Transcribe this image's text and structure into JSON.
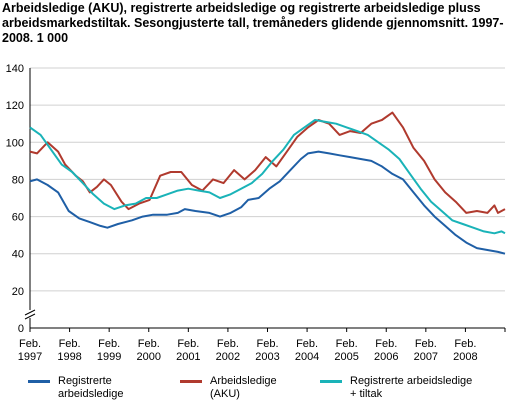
{
  "title": "Arbeidsledige (AKU), registrerte arbeidsledige og registrerte arbeidsledige pluss arbeidsmarkedstiltak. Sesongjusterte tall, tremåneders glidende gjennomsnitt. 1997-2008. 1 000",
  "chart_data": {
    "type": "line",
    "title": "Arbeidsledige (AKU), registrerte arbeidsledige og registrerte arbeidsledige pluss arbeidsmarkedstiltak. Sesongjusterte tall, tremåneders glidende gjennomsnitt. 1997-2008. 1 000",
    "xlabel": "",
    "ylabel": "",
    "ylim": [
      0,
      140
    ],
    "yticks": [
      0,
      20,
      40,
      60,
      80,
      100,
      120,
      140
    ],
    "y_axis_break": true,
    "grid": true,
    "x_range": [
      "1997-01",
      "2008-04"
    ],
    "x_tick_labels": [
      [
        "Feb.",
        "1997"
      ],
      [
        "Feb.",
        "1998"
      ],
      [
        "Feb.",
        "1999"
      ],
      [
        "Feb.",
        "2000"
      ],
      [
        "Feb.",
        "2001"
      ],
      [
        "Feb.",
        "2002"
      ],
      [
        "Feb.",
        "2003"
      ],
      [
        "Feb.",
        "2004"
      ],
      [
        "Feb.",
        "2005"
      ],
      [
        "Feb.",
        "2006"
      ],
      [
        "Feb.",
        "2007"
      ],
      [
        "Feb.",
        "2008"
      ]
    ],
    "legend_position": "bottom",
    "series": [
      {
        "name": "Registrerte arbeidsledige",
        "legend_lines": [
          "Registrerte",
          "arbeidsledige"
        ],
        "color": "#1f5fa6",
        "points": [
          [
            "1997-01",
            79
          ],
          [
            "1997-03",
            80
          ],
          [
            "1997-06",
            77
          ],
          [
            "1997-09",
            73
          ],
          [
            "1997-12",
            63
          ],
          [
            "1998-03",
            59
          ],
          [
            "1998-06",
            57
          ],
          [
            "1998-09",
            55
          ],
          [
            "1998-11",
            54
          ],
          [
            "1999-02",
            56
          ],
          [
            "1999-06",
            58
          ],
          [
            "1999-09",
            60
          ],
          [
            "1999-12",
            61
          ],
          [
            "2000-04",
            61
          ],
          [
            "2000-07",
            62
          ],
          [
            "2000-09",
            64
          ],
          [
            "2000-12",
            63
          ],
          [
            "2001-04",
            62
          ],
          [
            "2001-07",
            60
          ],
          [
            "2001-10",
            62
          ],
          [
            "2002-01",
            65
          ],
          [
            "2002-03",
            69
          ],
          [
            "2002-06",
            70
          ],
          [
            "2002-09",
            75
          ],
          [
            "2002-12",
            79
          ],
          [
            "2003-03",
            85
          ],
          [
            "2003-06",
            91
          ],
          [
            "2003-08",
            94
          ],
          [
            "2003-11",
            95
          ],
          [
            "2004-02",
            94
          ],
          [
            "2004-05",
            93
          ],
          [
            "2004-08",
            92
          ],
          [
            "2004-11",
            91
          ],
          [
            "2005-02",
            90
          ],
          [
            "2005-05",
            87
          ],
          [
            "2005-08",
            83
          ],
          [
            "2005-11",
            80
          ],
          [
            "2006-02",
            73
          ],
          [
            "2006-05",
            66
          ],
          [
            "2006-08",
            60
          ],
          [
            "2006-11",
            55
          ],
          [
            "2007-02",
            50
          ],
          [
            "2007-05",
            46
          ],
          [
            "2007-08",
            43
          ],
          [
            "2007-11",
            42
          ],
          [
            "2008-02",
            41
          ],
          [
            "2008-04",
            40
          ]
        ]
      },
      {
        "name": "Arbeidsledige (AKU)",
        "legend_lines": [
          "Arbeidsledige",
          "(AKU)"
        ],
        "color": "#b03a2e",
        "points": [
          [
            "1997-01",
            95
          ],
          [
            "1997-03",
            94
          ],
          [
            "1997-06",
            100
          ],
          [
            "1997-09",
            95
          ],
          [
            "1997-11",
            88
          ],
          [
            "1998-02",
            82
          ],
          [
            "1998-04",
            79
          ],
          [
            "1998-06",
            73
          ],
          [
            "1998-08",
            76
          ],
          [
            "1998-10",
            80
          ],
          [
            "1998-12",
            77
          ],
          [
            "1999-03",
            68
          ],
          [
            "1999-05",
            64
          ],
          [
            "1999-08",
            67
          ],
          [
            "1999-11",
            69
          ],
          [
            "2000-02",
            82
          ],
          [
            "2000-05",
            84
          ],
          [
            "2000-08",
            84
          ],
          [
            "2000-11",
            77
          ],
          [
            "2001-02",
            74
          ],
          [
            "2001-05",
            80
          ],
          [
            "2001-08",
            78
          ],
          [
            "2001-11",
            85
          ],
          [
            "2002-02",
            80
          ],
          [
            "2002-05",
            85
          ],
          [
            "2002-08",
            92
          ],
          [
            "2002-11",
            87
          ],
          [
            "2003-02",
            95
          ],
          [
            "2003-05",
            103
          ],
          [
            "2003-08",
            108
          ],
          [
            "2003-11",
            112
          ],
          [
            "2004-02",
            110
          ],
          [
            "2004-05",
            104
          ],
          [
            "2004-08",
            106
          ],
          [
            "2004-11",
            105
          ],
          [
            "2005-02",
            110
          ],
          [
            "2005-05",
            112
          ],
          [
            "2005-08",
            116
          ],
          [
            "2005-11",
            108
          ],
          [
            "2006-02",
            97
          ],
          [
            "2006-05",
            90
          ],
          [
            "2006-08",
            80
          ],
          [
            "2006-11",
            73
          ],
          [
            "2007-02",
            68
          ],
          [
            "2007-05",
            62
          ],
          [
            "2007-08",
            63
          ],
          [
            "2007-11",
            62
          ],
          [
            "2008-01",
            66
          ],
          [
            "2008-02",
            62
          ],
          [
            "2008-04",
            64
          ]
        ]
      },
      {
        "name": "Registrerte arbeidsledige + tiltak",
        "legend_lines": [
          "Registrerte arbeidsledige",
          "+ tiltak"
        ],
        "color": "#1ab3b8",
        "points": [
          [
            "1997-01",
            108
          ],
          [
            "1997-04",
            104
          ],
          [
            "1997-07",
            96
          ],
          [
            "1997-10",
            88
          ],
          [
            "1998-01",
            84
          ],
          [
            "1998-04",
            78
          ],
          [
            "1998-07",
            72
          ],
          [
            "1998-10",
            67
          ],
          [
            "1999-01",
            64
          ],
          [
            "1999-04",
            66
          ],
          [
            "1999-07",
            67
          ],
          [
            "1999-10",
            70
          ],
          [
            "2000-01",
            70
          ],
          [
            "2000-04",
            72
          ],
          [
            "2000-07",
            74
          ],
          [
            "2000-10",
            75
          ],
          [
            "2001-01",
            74
          ],
          [
            "2001-04",
            73
          ],
          [
            "2001-07",
            70
          ],
          [
            "2001-10",
            72
          ],
          [
            "2002-01",
            75
          ],
          [
            "2002-04",
            78
          ],
          [
            "2002-07",
            83
          ],
          [
            "2002-10",
            90
          ],
          [
            "2003-01",
            96
          ],
          [
            "2003-04",
            104
          ],
          [
            "2003-07",
            108
          ],
          [
            "2003-10",
            112
          ],
          [
            "2004-01",
            111
          ],
          [
            "2004-04",
            110
          ],
          [
            "2004-07",
            108
          ],
          [
            "2004-10",
            106
          ],
          [
            "2005-01",
            104
          ],
          [
            "2005-04",
            100
          ],
          [
            "2005-07",
            96
          ],
          [
            "2005-10",
            91
          ],
          [
            "2006-01",
            83
          ],
          [
            "2006-04",
            75
          ],
          [
            "2006-07",
            68
          ],
          [
            "2006-10",
            63
          ],
          [
            "2007-01",
            58
          ],
          [
            "2007-04",
            56
          ],
          [
            "2007-07",
            54
          ],
          [
            "2007-10",
            52
          ],
          [
            "2008-01",
            51
          ],
          [
            "2008-03",
            52
          ],
          [
            "2008-04",
            51
          ]
        ]
      }
    ]
  }
}
